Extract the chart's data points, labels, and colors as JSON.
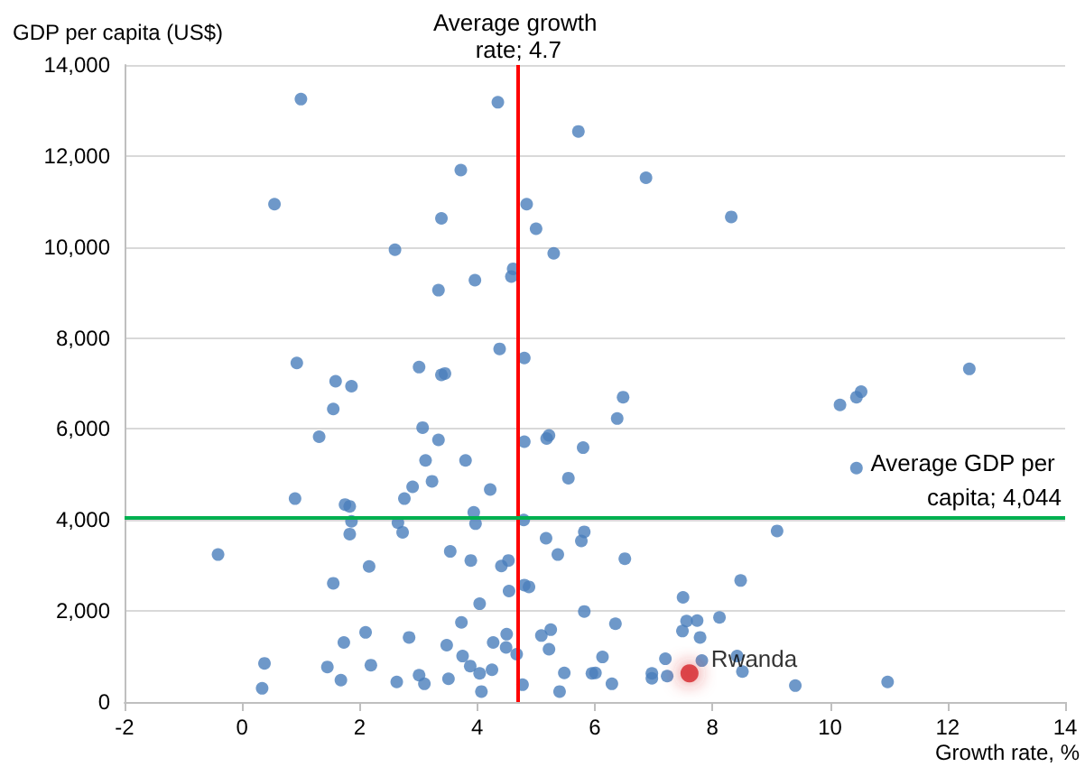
{
  "chart_data": {
    "type": "scatter",
    "xlabel": "Growth rate, %",
    "ylabel": "GDP per capita (US$)",
    "xlim": [
      -2,
      14
    ],
    "xticks": [
      -2,
      0,
      2,
      4,
      6,
      8,
      10,
      12,
      14
    ],
    "ylim": [
      0,
      14000
    ],
    "yticks": [
      {
        "value": 0,
        "label": "0"
      },
      {
        "value": 2000,
        "label": "2,000"
      },
      {
        "value": 4000,
        "label": "4,000"
      },
      {
        "value": 6000,
        "label": "6,000"
      },
      {
        "value": 8000,
        "label": "8,000"
      },
      {
        "value": 10000,
        "label": "10,000"
      },
      {
        "value": 12000,
        "label": "12,000"
      },
      {
        "value": 14000,
        "label": "14,000"
      }
    ],
    "grid": "y",
    "legend": false,
    "marker": "circle",
    "series": [
      {
        "color": "#4a7ebb",
        "x": [
          1.0,
          4.35,
          5.72,
          3.72,
          0.55,
          4.84,
          3.39,
          5.0,
          2.6,
          5.3,
          4.61,
          4.58,
          3.96,
          3.34,
          4.38,
          4.8,
          0.93,
          3.01,
          3.39,
          3.45,
          1.59,
          1.86,
          6.87,
          8.32,
          12.37,
          1.55,
          3.07,
          1.31,
          3.34,
          4.8,
          5.18,
          5.22,
          5.8,
          3.12,
          3.8,
          3.23,
          5.55,
          2.9,
          4.22,
          0.9,
          2.76,
          1.75,
          1.83,
          3.94,
          3.97,
          4.79,
          1.86,
          2.65,
          2.73,
          1.83,
          5.17,
          5.77,
          5.82,
          -0.41,
          3.54,
          3.89,
          5.37,
          2.16,
          4.53,
          4.41,
          1.55,
          4.8,
          4.88,
          4.54,
          4.04,
          5.82,
          3.73,
          2.1,
          5.25,
          5.09,
          1.73,
          2.84,
          3.48,
          4.27,
          4.5,
          4.49,
          5.22,
          4.67,
          3.75,
          0.38,
          1.45,
          2.19,
          3.88,
          4.04,
          4.25,
          5.48,
          5.95,
          3.01,
          3.1,
          3.51,
          1.68,
          2.63,
          4.77,
          0.34,
          4.07,
          5.4,
          6.48,
          6.38,
          10.17,
          10.45,
          10.53,
          10.45,
          9.1,
          6.51,
          8.48,
          7.5,
          6.35,
          7.56,
          7.74,
          7.49,
          8.12,
          7.79,
          6.13,
          7.2,
          7.82,
          8.42,
          6.01,
          6.97,
          6.97,
          7.23,
          8.51,
          6.29,
          9.41,
          10.98
        ],
        "values": [
          13250,
          13180,
          12540,
          11690,
          10940,
          10940,
          10630,
          10400,
          9940,
          9860,
          9520,
          9350,
          9270,
          9050,
          7760,
          7560,
          7450,
          7360,
          7190,
          7220,
          7050,
          6940,
          11520,
          10660,
          7320,
          6440,
          6030,
          5830,
          5760,
          5720,
          5790,
          5860,
          5590,
          5310,
          5310,
          4850,
          4920,
          4730,
          4670,
          4470,
          4470,
          4340,
          4300,
          4170,
          3920,
          4000,
          3970,
          3940,
          3730,
          3690,
          3600,
          3540,
          3740,
          3240,
          3310,
          3110,
          3240,
          2980,
          3110,
          2990,
          2610,
          2570,
          2530,
          2440,
          2160,
          1990,
          1750,
          1530,
          1590,
          1460,
          1310,
          1420,
          1250,
          1310,
          1490,
          1200,
          1160,
          1050,
          1010,
          850,
          770,
          810,
          790,
          630,
          710,
          640,
          630,
          590,
          400,
          510,
          480,
          440,
          380,
          300,
          230,
          230,
          6700,
          6230,
          6530,
          6700,
          6820,
          5140,
          3760,
          3150,
          2670,
          2300,
          1720,
          1780,
          1790,
          1560,
          1860,
          1420,
          990,
          950,
          910,
          1010,
          640,
          630,
          520,
          570,
          670,
          400,
          360,
          440
        ]
      },
      {
        "name": "Rwanda",
        "color": "#d62728",
        "x": [
          7.61
        ],
        "values": [
          630
        ]
      }
    ],
    "ref_lines": [
      {
        "axis": "x",
        "value": 4.7,
        "label": "Average growth rate; 4.7",
        "color": "#ff0000",
        "line_style": "solid"
      },
      {
        "axis": "y",
        "value": 4044,
        "label": "Average GDP per capita; 4,044",
        "color": "#00b050",
        "line_style": "solid"
      }
    ]
  }
}
